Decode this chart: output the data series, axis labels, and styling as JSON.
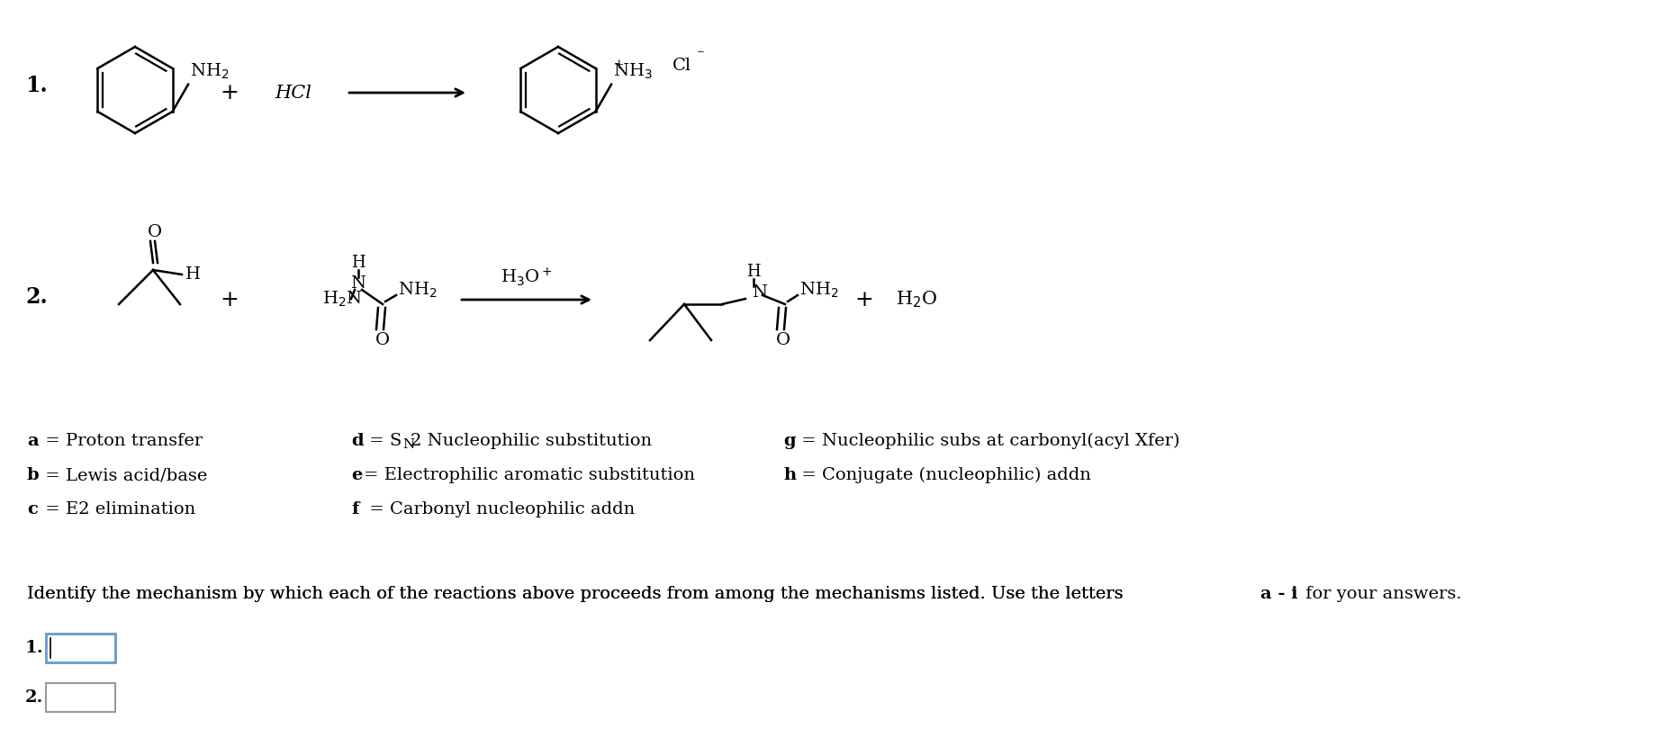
{
  "bg_color": "#ffffff",
  "text_color": "#000000",
  "fs_main": 14,
  "fs_label": 16,
  "mechanisms_left": [
    "a = Proton transfer",
    "b = Lewis acid/base",
    "c = E2 elimination"
  ],
  "mechanisms_mid_1": "d = S",
  "mechanisms_mid_1b": "N",
  "mechanisms_mid_1c": "2 Nucleophilic substitution",
  "mechanisms_mid_2": "e= Electrophilic aromatic substitution",
  "mechanisms_mid_3": "f = Carbonyl nucleophilic addn",
  "mechanisms_right": [
    "g = Nucleophilic subs at carbonyl(acyl Xfer)",
    "h = Conjugate (nucleophilic) addn"
  ],
  "bottom_text": "Identify the mechanism by which each of the reactions above proceeds from among the mechanisms listed. Use the letters  a - i  for your answers.",
  "bottom_text_bold": "a - i"
}
